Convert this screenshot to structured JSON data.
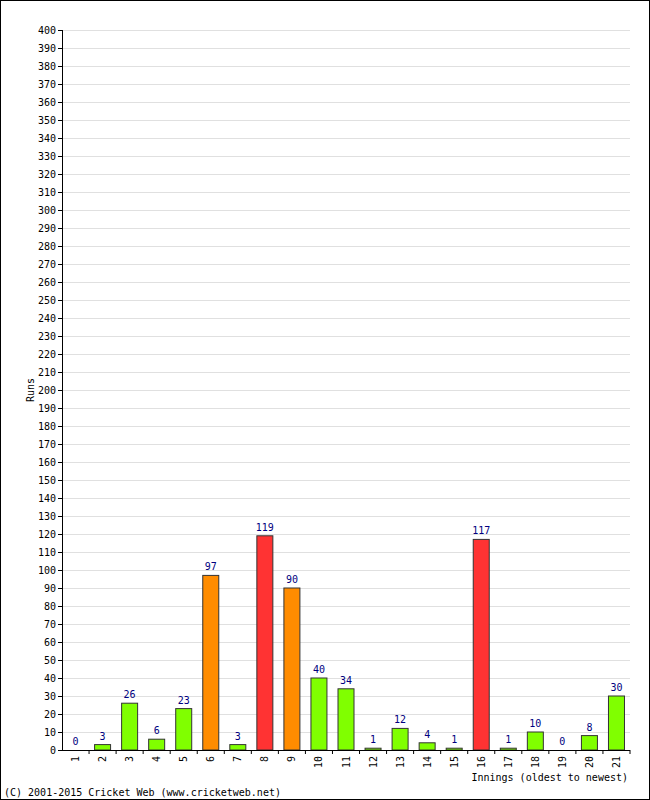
{
  "chart_data": {
    "type": "bar",
    "x_label": "Innings (oldest to newest)",
    "y_label": "Runs",
    "annotations": [
      "(C) 2001-2015 Cricket Web (www.cricketweb.net)"
    ],
    "categories": [
      "1",
      "2",
      "3",
      "4",
      "5",
      "6",
      "7",
      "8",
      "9",
      "10",
      "11",
      "12",
      "13",
      "14",
      "15",
      "16",
      "17",
      "18",
      "19",
      "20",
      "21"
    ],
    "values": [
      0,
      3,
      26,
      6,
      23,
      97,
      3,
      119,
      90,
      40,
      34,
      1,
      12,
      4,
      1,
      117,
      1,
      10,
      0,
      8,
      30
    ],
    "colors": [
      "#80ff00",
      "#80ff00",
      "#80ff00",
      "#80ff00",
      "#80ff00",
      "#ff8c00",
      "#80ff00",
      "#ff3333",
      "#ff8c00",
      "#80ff00",
      "#80ff00",
      "#80ff00",
      "#80ff00",
      "#80ff00",
      "#80ff00",
      "#ff3333",
      "#80ff00",
      "#80ff00",
      "#80ff00",
      "#80ff00",
      "#80ff00"
    ],
    "ylim": [
      0,
      400
    ],
    "yticks": [
      0,
      10,
      20,
      30,
      40,
      50,
      60,
      70,
      80,
      90,
      100,
      110,
      120,
      130,
      140,
      150,
      160,
      170,
      180,
      190,
      200,
      210,
      220,
      230,
      240,
      250,
      260,
      270,
      280,
      290,
      300,
      310,
      320,
      330,
      340,
      350,
      360,
      370,
      380,
      390,
      400
    ],
    "grid": true,
    "data_labels": true
  }
}
